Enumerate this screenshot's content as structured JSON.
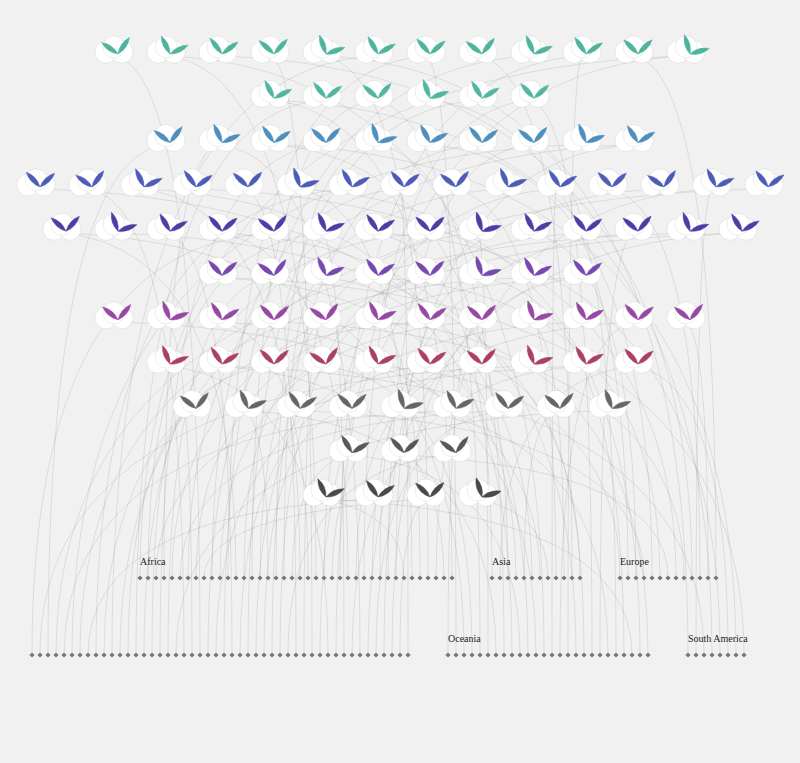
{
  "chart_data": {
    "type": "scatter",
    "tick_labels": false,
    "grid": false,
    "rows": [
      {
        "color": "#3fae95",
        "flowers": 12
      },
      {
        "color": "#45b09a",
        "flowers": 6
      },
      {
        "color": "#3f86b8",
        "flowers": 10
      },
      {
        "color": "#3e4fb0",
        "flowers": 15
      },
      {
        "color": "#3a2f9e",
        "flowers": 14
      },
      {
        "color": "#6a3aa8",
        "flowers": 8
      },
      {
        "color": "#8e3a9c",
        "flowers": 12
      },
      {
        "color": "#a3305c",
        "flowers": 10
      },
      {
        "color": "#5a5a5a",
        "flowers": 9
      },
      {
        "color": "#4a4a4a",
        "flowers": 3
      },
      {
        "color": "#3a3a3a",
        "flowers": 4
      }
    ],
    "continents": [
      [
        {
          "name": "Africa",
          "species": 40
        },
        {
          "name": "Asia",
          "species": 12
        },
        {
          "name": "Europe",
          "species": 13
        }
      ],
      [
        {
          "name": null,
          "species": 48
        },
        {
          "name": "Oceania",
          "species": 26
        },
        {
          "name": "South America",
          "species": 8
        }
      ]
    ]
  }
}
